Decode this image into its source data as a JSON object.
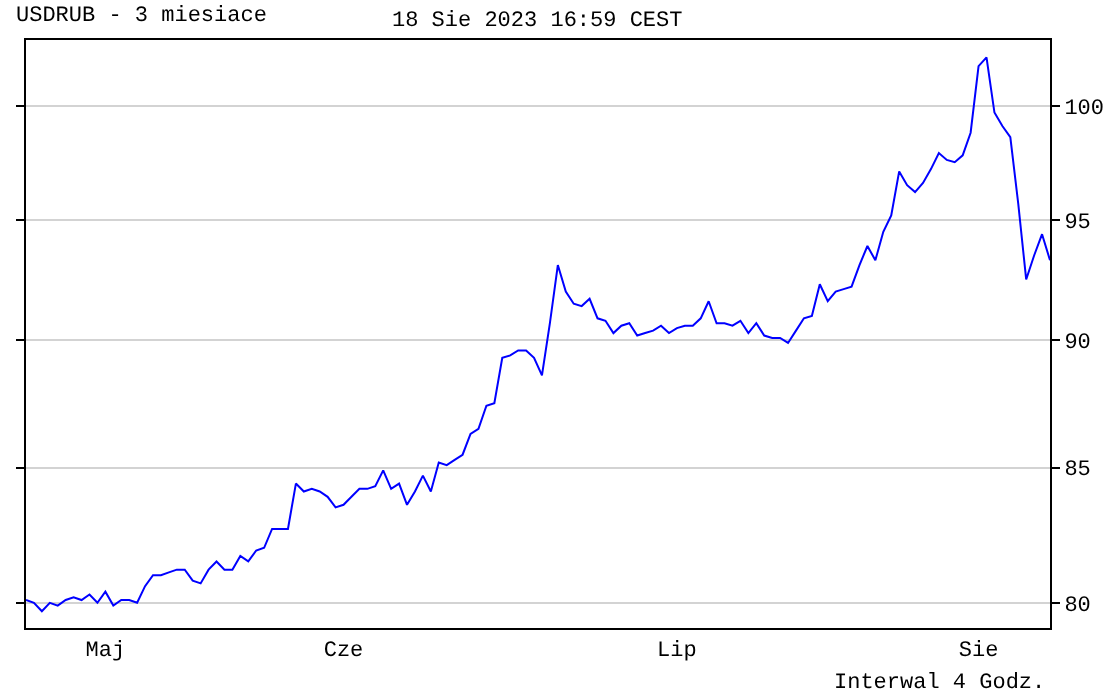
{
  "chart_data": {
    "type": "line",
    "title": "USDRUB - 3 miesiace",
    "subtitle": "18 Sie 2023 16:59 CEST",
    "annotations": [
      "Interwal 4 Godz."
    ],
    "log": "y",
    "grid": "y",
    "categories": [
      null,
      null,
      null,
      null,
      null,
      null,
      null,
      null,
      null,
      null,
      "Maj",
      null,
      null,
      null,
      null,
      null,
      null,
      null,
      null,
      null,
      null,
      null,
      null,
      null,
      null,
      null,
      null,
      null,
      null,
      null,
      null,
      null,
      null,
      null,
      null,
      null,
      null,
      null,
      null,
      null,
      "Cze",
      null,
      null,
      null,
      null,
      null,
      null,
      null,
      null,
      null,
      null,
      null,
      null,
      null,
      null,
      null,
      null,
      null,
      null,
      null,
      null,
      null,
      null,
      null,
      null,
      null,
      null,
      null,
      null,
      null,
      null,
      null,
      null,
      null,
      null,
      null,
      null,
      null,
      null,
      null,
      null,
      null,
      "Lip",
      null,
      null,
      null,
      null,
      null,
      null,
      null,
      null,
      null,
      null,
      null,
      null,
      null,
      null,
      null,
      null,
      null,
      null,
      null,
      null,
      null,
      null,
      null,
      null,
      null,
      null,
      null,
      null,
      null,
      null,
      null,
      null,
      null,
      null,
      null,
      null,
      null,
      "Sie",
      null,
      null,
      null,
      null,
      null,
      null,
      null,
      null,
      null
    ],
    "ylim": [
      79.1,
      103
    ],
    "yticks": [
      80,
      85,
      90,
      95,
      100
    ],
    "series": [
      {
        "color": "#0000ff",
        "values": [
          80.1,
          80.0,
          79.7,
          80.0,
          79.9,
          80.1,
          80.2,
          80.1,
          80.3,
          80.0,
          80.4,
          79.9,
          80.1,
          80.1,
          80.0,
          80.6,
          81.0,
          81.0,
          81.1,
          81.2,
          81.2,
          80.8,
          80.7,
          81.2,
          81.5,
          81.2,
          81.2,
          81.7,
          81.5,
          81.9,
          82.0,
          82.7,
          82.7,
          82.7,
          84.4,
          84.1,
          84.2,
          84.1,
          83.9,
          83.5,
          83.6,
          83.9,
          84.2,
          84.2,
          84.3,
          84.9,
          84.2,
          84.4,
          83.6,
          84.1,
          84.7,
          84.1,
          85.2,
          85.1,
          85.3,
          85.5,
          86.3,
          86.5,
          87.4,
          87.5,
          89.3,
          89.4,
          89.6,
          89.6,
          89.3,
          88.6,
          90.7,
          93.1,
          92.0,
          91.5,
          91.4,
          91.7,
          90.9,
          90.8,
          90.3,
          90.6,
          90.7,
          90.2,
          90.3,
          90.4,
          90.6,
          90.3,
          90.5,
          90.6,
          90.6,
          90.9,
          91.6,
          90.7,
          90.7,
          90.6,
          90.8,
          90.3,
          90.7,
          90.2,
          90.1,
          90.1,
          89.9,
          90.4,
          90.9,
          91.0,
          92.3,
          91.6,
          92.0,
          92.1,
          92.2,
          93.1,
          93.9,
          93.3,
          94.5,
          95.2,
          97.1,
          96.5,
          96.2,
          96.6,
          97.2,
          97.9,
          97.6,
          97.5,
          97.8,
          98.8,
          101.8,
          102.2,
          99.7,
          99.1,
          98.6,
          95.7,
          92.5,
          93.5,
          94.4,
          93.3
        ]
      }
    ]
  }
}
